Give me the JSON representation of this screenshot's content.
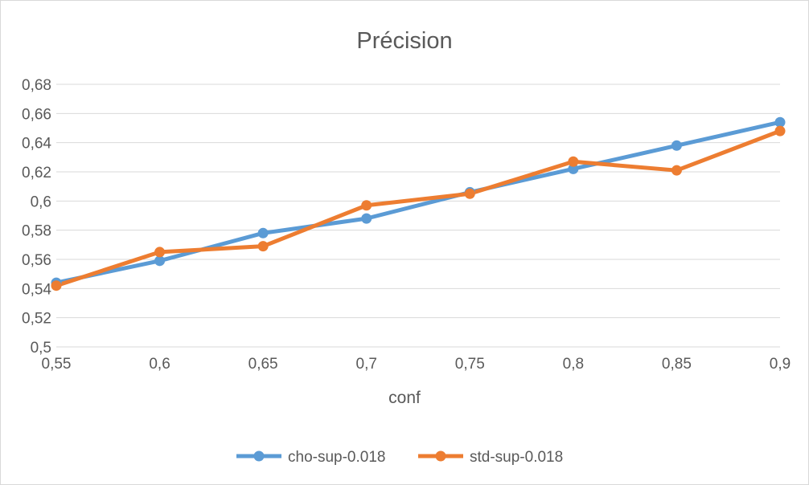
{
  "chart_data": {
    "type": "line",
    "title": "Précision",
    "xlabel": "conf",
    "ylabel": "",
    "x": [
      0.55,
      0.6,
      0.65,
      0.7,
      0.75,
      0.8,
      0.85,
      0.9
    ],
    "x_tick_labels": [
      "0,55",
      "0,6",
      "0,65",
      "0,7",
      "0,75",
      "0,8",
      "0,85",
      "0,9"
    ],
    "y_ticks": [
      0.5,
      0.52,
      0.54,
      0.56,
      0.58,
      0.6,
      0.62,
      0.64,
      0.66,
      0.68
    ],
    "y_tick_labels": [
      "0,5",
      "0,52",
      "0,54",
      "0,56",
      "0,58",
      "0,6",
      "0,62",
      "0,64",
      "0,66",
      "0,68"
    ],
    "ylim": [
      0.5,
      0.68
    ],
    "xlim": [
      0.55,
      0.9
    ],
    "grid": true,
    "legend_position": "bottom",
    "series": [
      {
        "name": "cho-sup-0.018",
        "color": "#5B9BD5",
        "values": [
          0.544,
          0.559,
          0.578,
          0.588,
          0.606,
          0.622,
          0.638,
          0.654
        ]
      },
      {
        "name": "std-sup-0.018",
        "color": "#ED7D31",
        "values": [
          0.542,
          0.565,
          0.569,
          0.597,
          0.605,
          0.627,
          0.621,
          0.648
        ]
      }
    ]
  }
}
